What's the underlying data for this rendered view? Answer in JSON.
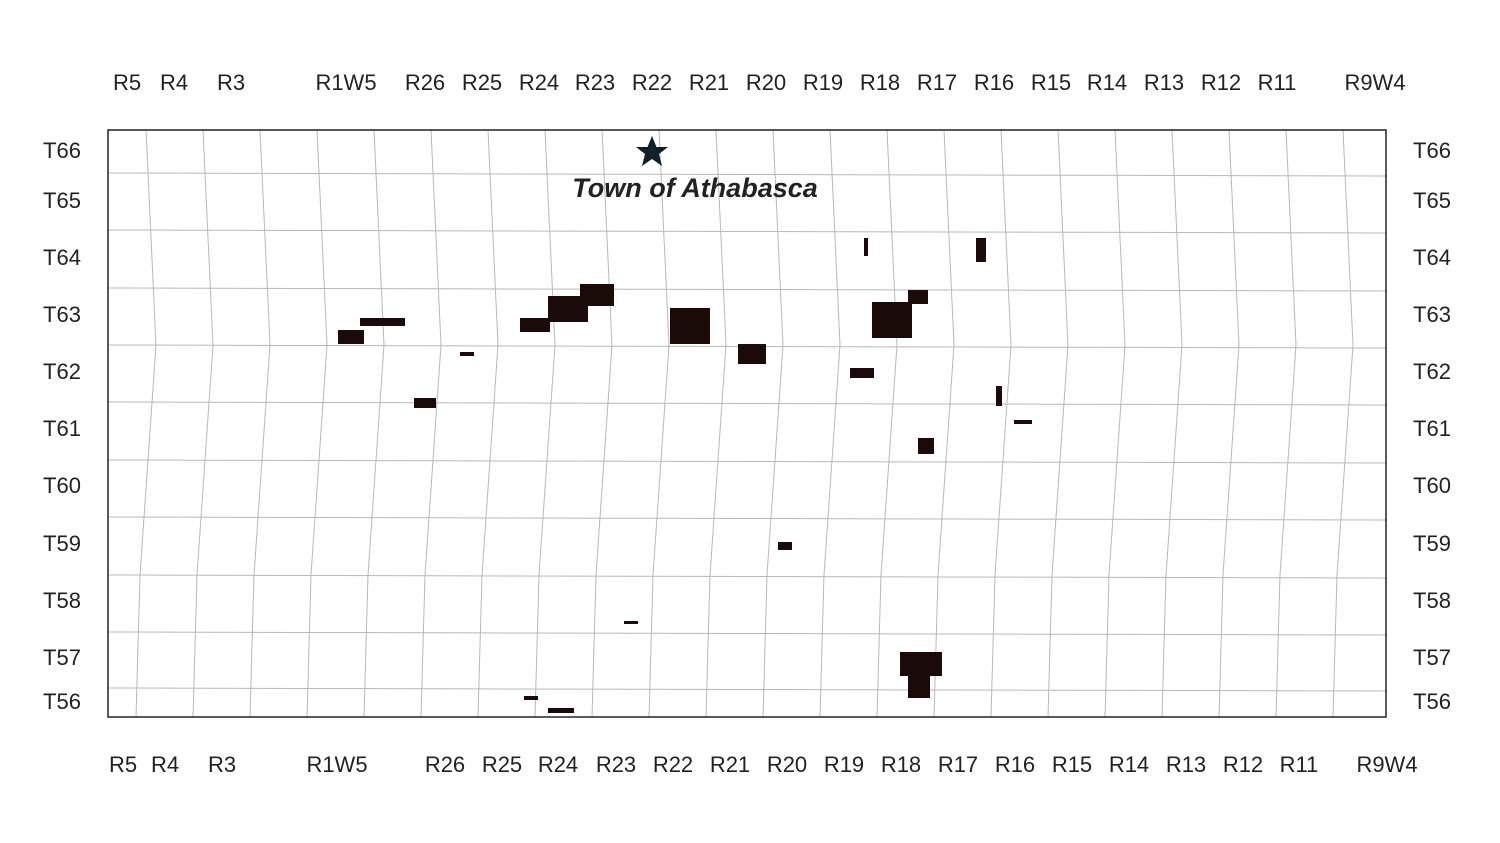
{
  "map": {
    "town_label": "Town of Athabasca",
    "ranges_top": [
      "R5",
      "R4",
      "R3",
      "R1W5",
      "R26",
      "R25",
      "R24",
      "R23",
      "R22",
      "R21",
      "R20",
      "R19",
      "R18",
      "R17",
      "R16",
      "R15",
      "R14",
      "R13",
      "R12",
      "R11",
      "R9W4"
    ],
    "ranges_bottom": [
      "R5",
      "R4",
      "R3",
      "R1W5",
      "R26",
      "R25",
      "R24",
      "R23",
      "R22",
      "R21",
      "R20",
      "R19",
      "R18",
      "R17",
      "R16",
      "R15",
      "R14",
      "R13",
      "R12",
      "R11",
      "R9W4"
    ],
    "townships_left": [
      "T66",
      "T65",
      "T64",
      "T63",
      "T62",
      "T61",
      "T60",
      "T59",
      "T58",
      "T57",
      "T56"
    ],
    "townships_right": [
      "T66",
      "T65",
      "T64",
      "T63",
      "T62",
      "T61",
      "T60",
      "T59",
      "T58",
      "T57",
      "T56"
    ]
  }
}
